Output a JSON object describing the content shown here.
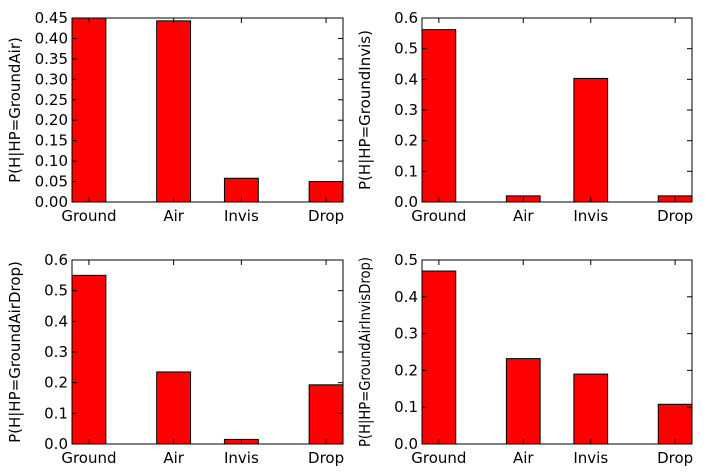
{
  "chart_data": [
    {
      "type": "bar",
      "categories": [
        "Ground",
        "Air",
        "Invis",
        "Drop"
      ],
      "values": [
        0.45,
        0.443,
        0.058,
        0.05
      ],
      "ylabel": "P(H|HP=GroundAir)",
      "ylim": [
        0,
        0.45
      ],
      "yticks": [
        "0.00",
        "0.05",
        "0.10",
        "0.15",
        "0.20",
        "0.25",
        "0.30",
        "0.35",
        "0.40",
        "0.45"
      ],
      "grid": false,
      "bar_color": "#ff0000"
    },
    {
      "type": "bar",
      "categories": [
        "Ground",
        "Air",
        "Invis",
        "Drop"
      ],
      "values": [
        0.562,
        0.02,
        0.403,
        0.02
      ],
      "ylabel": "P(H|HP=GroundInvis)",
      "ylim": [
        0,
        0.6
      ],
      "yticks": [
        "0.0",
        "0.1",
        "0.2",
        "0.3",
        "0.4",
        "0.5",
        "0.6"
      ],
      "grid": false,
      "bar_color": "#ff0000"
    },
    {
      "type": "bar",
      "categories": [
        "Ground",
        "Air",
        "Invis",
        "Drop"
      ],
      "values": [
        0.55,
        0.235,
        0.015,
        0.193
      ],
      "ylabel": "P(H|HP=GroundAirDrop)",
      "ylim": [
        0,
        0.6
      ],
      "yticks": [
        "0.0",
        "0.1",
        "0.2",
        "0.3",
        "0.4",
        "0.5",
        "0.6"
      ],
      "grid": false,
      "bar_color": "#ff0000"
    },
    {
      "type": "bar",
      "categories": [
        "Ground",
        "Air",
        "Invis",
        "Drop"
      ],
      "values": [
        0.47,
        0.232,
        0.19,
        0.108
      ],
      "ylabel": "P(H|HP=GroundAirInvisDrop)",
      "ylim": [
        0,
        0.5
      ],
      "yticks": [
        "0.0",
        "0.1",
        "0.2",
        "0.3",
        "0.4",
        "0.5"
      ],
      "grid": false,
      "bar_color": "#ff0000"
    }
  ]
}
